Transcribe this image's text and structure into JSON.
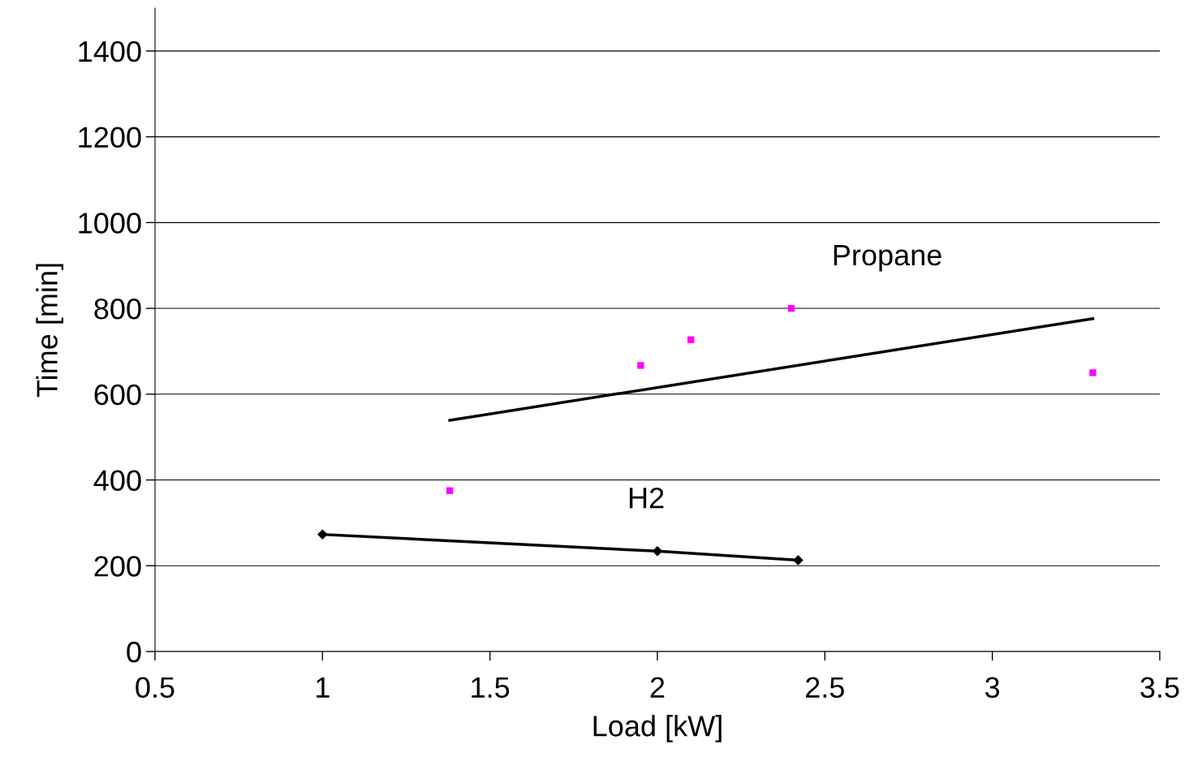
{
  "chart_data": {
    "type": "scatter",
    "xlabel": "Load [kW]",
    "ylabel": "Time [min]",
    "xlim": [
      0.5,
      3.5
    ],
    "xticks": [
      0.5,
      1,
      1.5,
      2,
      2.5,
      3,
      3.5
    ],
    "ylim": [
      0,
      1500
    ],
    "yticks": [
      0,
      200,
      400,
      600,
      800,
      1000,
      1200,
      1400
    ],
    "grid": "y",
    "legend": false,
    "series": [
      {
        "name": "Propane",
        "marker": "square",
        "color": "#ff00ff",
        "x": [
          1.38,
          1.95,
          2.1,
          2.4,
          3.3
        ],
        "values": [
          375,
          667,
          727,
          800,
          650
        ]
      },
      {
        "type": "line",
        "marker": "none",
        "color": "#000000",
        "x": [
          1.38,
          3.3
        ],
        "values": [
          539,
          776
        ]
      },
      {
        "name": "H2",
        "type": "line",
        "marker": "diamond",
        "color": "#000000",
        "x": [
          1,
          2,
          2.42
        ],
        "values": [
          273,
          234,
          213
        ]
      }
    ]
  }
}
